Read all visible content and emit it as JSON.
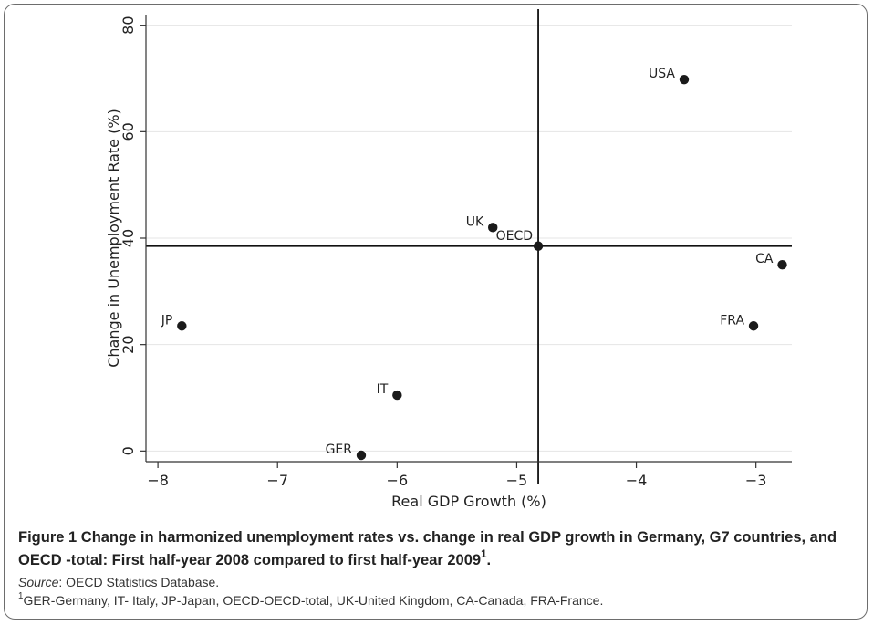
{
  "chart_data": {
    "type": "scatter",
    "xlabel": "Real GDP Growth (%)",
    "ylabel": "Change in Unemployment Rate (%)",
    "xlim": [
      -8.1,
      -2.7
    ],
    "ylim": [
      -2,
      82
    ],
    "xticks": [
      -8,
      -7,
      -6,
      -5,
      -4,
      -3
    ],
    "xtick_labels": [
      "−8",
      "−7",
      "−6",
      "−5",
      "−4",
      "−3"
    ],
    "yticks": [
      0,
      20,
      40,
      60,
      80
    ],
    "ytick_labels": [
      "0",
      "20",
      "40",
      "60",
      "80"
    ],
    "grid": "horizontal",
    "reference_lines": {
      "x": -4.82,
      "y": 38.5
    },
    "points": [
      {
        "label": "USA",
        "x": -3.6,
        "y": 69.8,
        "label_side": "left"
      },
      {
        "label": "UK",
        "x": -5.2,
        "y": 42.0,
        "label_side": "left"
      },
      {
        "label": "OECD",
        "x": -4.82,
        "y": 38.5,
        "label_side": "above-left"
      },
      {
        "label": "CA",
        "x": -2.78,
        "y": 35.0,
        "label_side": "left"
      },
      {
        "label": "JP",
        "x": -7.8,
        "y": 23.5,
        "label_side": "left"
      },
      {
        "label": "FRA",
        "x": -3.02,
        "y": 23.5,
        "label_side": "left"
      },
      {
        "label": "IT",
        "x": -6.0,
        "y": 10.5,
        "label_side": "left"
      },
      {
        "label": "GER",
        "x": -6.3,
        "y": -0.8,
        "label_side": "left"
      }
    ],
    "colors": {
      "point": "#1a1a1a",
      "axis": "#333333",
      "grid": "#e4e4e4"
    }
  },
  "caption": {
    "figure_label": "Figure 1",
    "title": "Change in harmonized unemployment rates vs. change in real GDP growth in Germany, G7 countries, and OECD -total: First half-year 2008 compared to first half-year 2009",
    "title_sup": "1",
    "title_end": ".",
    "source_label": "Source",
    "source_text": ": OECD Statistics Database.",
    "footnote_sup": "1",
    "footnote_text": "GER-Germany, IT- Italy, JP-Japan, OECD-OECD-total, UK-United Kingdom, CA-Canada, FRA-France."
  }
}
